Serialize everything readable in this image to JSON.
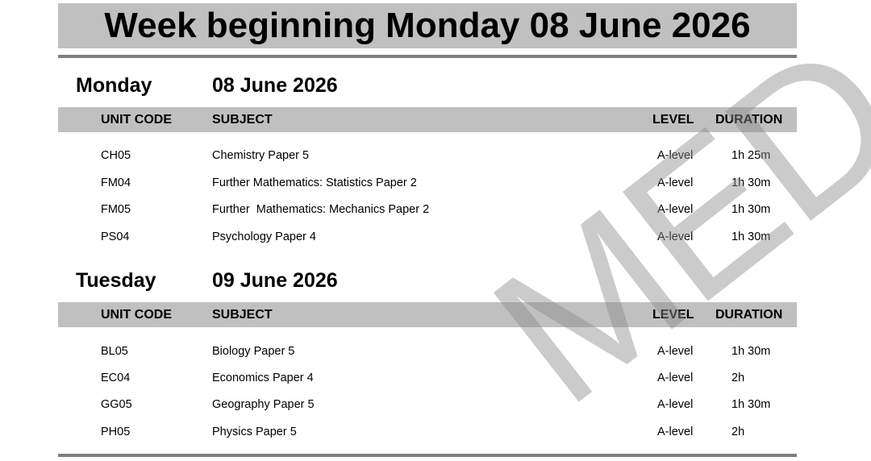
{
  "title": "Week beginning Monday 08 June 2026",
  "headers": {
    "unit_code": "UNIT CODE",
    "subject": "SUBJECT",
    "level": "LEVEL",
    "duration": "DURATION"
  },
  "days": [
    {
      "day": "Monday",
      "date": "08 June 2026",
      "rows": [
        {
          "code": "CH05",
          "subject": "Chemistry Paper 5",
          "level": "A-level",
          "duration": "1h 25m"
        },
        {
          "code": "FM04",
          "subject": "Further Mathematics: Statistics Paper 2",
          "level": "A-level",
          "duration": "1h 30m"
        },
        {
          "code": "FM05",
          "subject": "Further  Mathematics: Mechanics Paper 2",
          "level": "A-level",
          "duration": "1h 30m"
        },
        {
          "code": "PS04",
          "subject": "Psychology Paper 4",
          "level": "A-level",
          "duration": "1h 30m"
        }
      ]
    },
    {
      "day": "Tuesday",
      "date": "09 June 2026",
      "rows": [
        {
          "code": "BL05",
          "subject": "Biology Paper 5",
          "level": "A-level",
          "duration": "1h 30m"
        },
        {
          "code": "EC04",
          "subject": "Economics Paper 4",
          "level": "A-level",
          "duration": "2h"
        },
        {
          "code": "GG05",
          "subject": "Geography Paper 5",
          "level": "A-level",
          "duration": "1h 30m"
        },
        {
          "code": "PH05",
          "subject": "Physics Paper 5",
          "level": "A-level",
          "duration": "2h"
        }
      ]
    }
  ],
  "watermark": "MED"
}
